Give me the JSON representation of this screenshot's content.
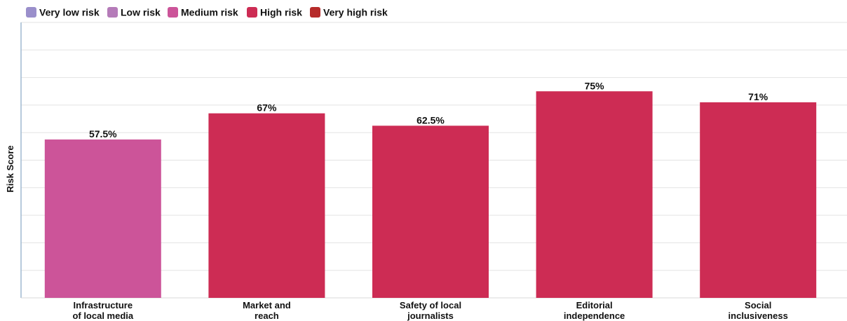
{
  "legend": [
    {
      "label": "Very low risk",
      "color": "#9A8FCB"
    },
    {
      "label": "Low risk",
      "color": "#B57BB9"
    },
    {
      "label": "Medium risk",
      "color": "#CC5499"
    },
    {
      "label": "High risk",
      "color": "#CD2C54"
    },
    {
      "label": "Very high risk",
      "color": "#B62B2A"
    }
  ],
  "chart_data": {
    "type": "bar",
    "title": "",
    "xlabel": "",
    "ylabel": "Risk Score",
    "ylim": [
      0,
      100
    ],
    "grid": true,
    "legend_position": "top-left",
    "categories": [
      "Infrastructure of local media",
      "Market and reach",
      "Safety of local journalists",
      "Editorial independence",
      "Social inclusiveness"
    ],
    "category_lines": [
      [
        "Infrastructure",
        "of local media"
      ],
      [
        "Market and",
        "reach"
      ],
      [
        "Safety of local",
        "journalists"
      ],
      [
        "Editorial",
        "independence"
      ],
      [
        "Social",
        "inclusiveness"
      ]
    ],
    "values": [
      57.5,
      67,
      62.5,
      75,
      71
    ],
    "value_labels": [
      "57.5%",
      "67%",
      "62.5%",
      "75%",
      "71%"
    ],
    "risk_levels": [
      "Medium risk",
      "High risk",
      "High risk",
      "High risk",
      "High risk"
    ]
  }
}
